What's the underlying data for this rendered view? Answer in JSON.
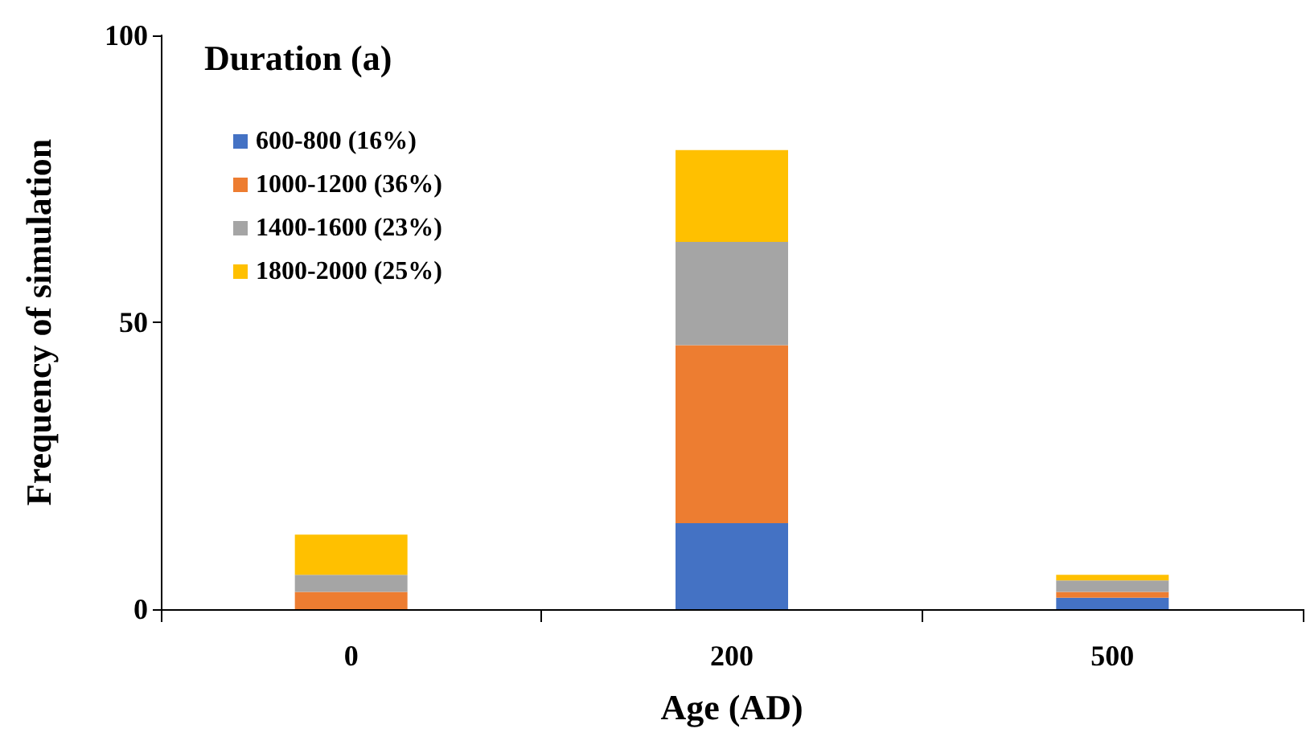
{
  "chart_data": {
    "type": "bar",
    "stacked": true,
    "xlabel": "Age (AD)",
    "ylabel": "Frequency of simulation",
    "legend_title": "Duration (a)",
    "legend": "top left",
    "categories": [
      "0",
      "200",
      "500"
    ],
    "series": [
      {
        "name": "600-800 (16%)",
        "color": "#4472c4",
        "values": [
          0,
          15,
          2
        ]
      },
      {
        "name": "1000-1200 (36%)",
        "color": "#ed7d31",
        "values": [
          3,
          31,
          1
        ]
      },
      {
        "name": "1400-1600 (23%)",
        "color": "#a5a5a5",
        "values": [
          3,
          18,
          2
        ]
      },
      {
        "name": "1800-2000 (25%)",
        "color": "#ffc000",
        "values": [
          7,
          16,
          1
        ]
      }
    ],
    "ylim": [
      0,
      100
    ],
    "yticks": [
      0,
      50,
      100
    ],
    "grid": false
  }
}
